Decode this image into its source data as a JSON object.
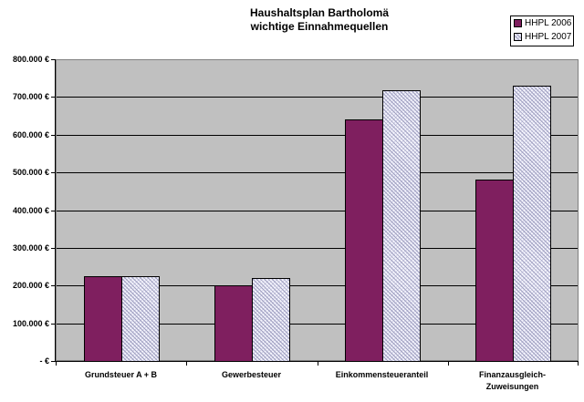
{
  "chart_data": {
    "type": "bar",
    "title": "Haushaltsplan Bartholomä",
    "subtitle": "wichtige Einnahmequellen",
    "categories": [
      "Grundsteuer A + B",
      "Gewerbesteuer",
      "Einkommensteueranteil",
      "Finanzausgleich-Zuweisungen"
    ],
    "series": [
      {
        "name": "HHPL 2006",
        "color": "#7f1f5f",
        "values": [
          225000,
          200000,
          640000,
          480000
        ]
      },
      {
        "name": "HHPL 2007",
        "color": "#f4f4fc",
        "pattern": "hatched",
        "values": [
          225000,
          220000,
          718000,
          730000
        ]
      }
    ],
    "xlabel": "",
    "ylabel": "",
    "ylim": [
      0,
      800000
    ],
    "yticks": [
      "-   €",
      "100.000 €",
      "200.000 €",
      "300.000 €",
      "400.000 €",
      "500.000 €",
      "600.000 €",
      "700.000 €",
      "800.000 €"
    ],
    "grid": true,
    "legend_position": "top-right"
  },
  "title_line1": "Haushaltsplan Bartholomä",
  "title_line2": "wichtige Einnahmequellen",
  "legend": [
    "HHPL 2006",
    "HHPL 2007"
  ],
  "xlabels": [
    "Grundsteuer A + B",
    "Gewerbesteuer",
    "Einkommensteueranteil",
    "Finanzausgleich-",
    "Zuweisungen"
  ]
}
